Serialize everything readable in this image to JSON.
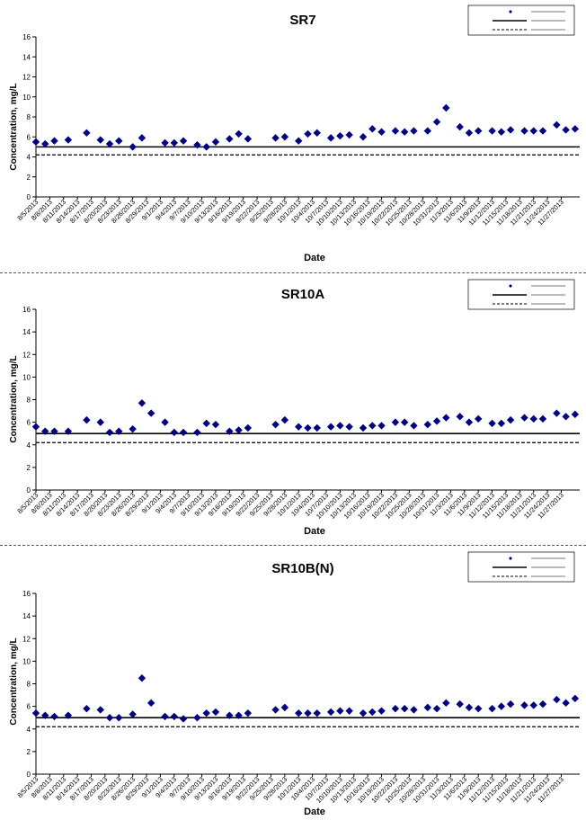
{
  "axis_dates": [
    "8/5/2013",
    "8/8/2013",
    "8/11/2013",
    "8/14/2013",
    "8/17/2013",
    "8/20/2013",
    "8/23/2013",
    "8/26/2013",
    "8/29/2013",
    "9/1/2013",
    "9/4/2013",
    "9/7/2013",
    "9/10/2013",
    "9/13/2013",
    "9/16/2013",
    "9/19/2013",
    "9/22/2013",
    "9/25/2013",
    "9/28/2013",
    "10/1/2013",
    "10/4/2013",
    "10/7/2013",
    "10/10/2013",
    "10/13/2013",
    "10/16/2013",
    "10/19/2013",
    "10/22/2013",
    "10/25/2013",
    "10/28/2013",
    "10/31/2013",
    "11/3/2013",
    "11/6/2013",
    "11/9/2013",
    "11/12/2013",
    "11/15/2013",
    "11/18/2013",
    "11/21/2013",
    "11/24/2013",
    "11/27/2013"
  ],
  "colors": {
    "marker": "#00008B",
    "line": "#000000"
  },
  "chart_data": [
    {
      "type": "scatter",
      "title": "SR7",
      "xlabel": "Date",
      "ylabel": "Concentration, mg/L",
      "ylim": [
        0,
        16
      ],
      "yticks": [
        0,
        2,
        4,
        6,
        8,
        10,
        12,
        14,
        16
      ],
      "xlim": [
        "8/5/2013",
        "11/28/2013"
      ],
      "reference_lines": [
        {
          "style": "solid",
          "y": 5.0
        },
        {
          "style": "dashed",
          "y": 4.2
        }
      ],
      "legend_placement": "top-right",
      "points": [
        [
          "8/5/2013",
          5.5
        ],
        [
          "8/7/2013",
          5.3
        ],
        [
          "8/9/2013",
          5.6
        ],
        [
          "8/12/2013",
          5.7
        ],
        [
          "8/16/2013",
          6.4
        ],
        [
          "8/19/2013",
          5.7
        ],
        [
          "8/21/2013",
          5.3
        ],
        [
          "8/23/2013",
          5.6
        ],
        [
          "8/26/2013",
          5.0
        ],
        [
          "8/28/2013",
          5.9
        ],
        [
          "9/2/2013",
          5.4
        ],
        [
          "9/4/2013",
          5.4
        ],
        [
          "9/6/2013",
          5.6
        ],
        [
          "9/9/2013",
          5.2
        ],
        [
          "9/11/2013",
          5.0
        ],
        [
          "9/13/2013",
          5.5
        ],
        [
          "9/16/2013",
          5.8
        ],
        [
          "9/18/2013",
          6.3
        ],
        [
          "9/20/2013",
          5.8
        ],
        [
          "9/26/2013",
          5.9
        ],
        [
          "9/28/2013",
          6.0
        ],
        [
          "10/1/2013",
          5.6
        ],
        [
          "10/3/2013",
          6.3
        ],
        [
          "10/5/2013",
          6.4
        ],
        [
          "10/8/2013",
          5.9
        ],
        [
          "10/10/2013",
          6.1
        ],
        [
          "10/12/2013",
          6.2
        ],
        [
          "10/15/2013",
          6.0
        ],
        [
          "10/17/2013",
          6.8
        ],
        [
          "10/19/2013",
          6.5
        ],
        [
          "10/22/2013",
          6.6
        ],
        [
          "10/24/2013",
          6.5
        ],
        [
          "10/26/2013",
          6.6
        ],
        [
          "10/29/2013",
          6.6
        ],
        [
          "10/31/2013",
          7.5
        ],
        [
          "11/2/2013",
          8.9
        ],
        [
          "11/5/2013",
          7.0
        ],
        [
          "11/7/2013",
          6.4
        ],
        [
          "11/9/2013",
          6.6
        ],
        [
          "11/12/2013",
          6.6
        ],
        [
          "11/14/2013",
          6.5
        ],
        [
          "11/16/2013",
          6.7
        ],
        [
          "11/19/2013",
          6.6
        ],
        [
          "11/21/2013",
          6.6
        ],
        [
          "11/23/2013",
          6.6
        ],
        [
          "11/26/2013",
          7.2
        ],
        [
          "11/28/2013",
          6.7
        ],
        [
          "11/30/2013",
          6.8
        ]
      ]
    },
    {
      "type": "scatter",
      "title": "SR10A",
      "xlabel": "Date",
      "ylabel": "Concentration, mg/L",
      "ylim": [
        0,
        16
      ],
      "yticks": [
        0,
        2,
        4,
        6,
        8,
        10,
        12,
        14,
        16
      ],
      "xlim": [
        "8/5/2013",
        "11/28/2013"
      ],
      "reference_lines": [
        {
          "style": "solid",
          "y": 5.0
        },
        {
          "style": "dashed",
          "y": 4.2
        }
      ],
      "legend_placement": "top-right",
      "points": [
        [
          "8/5/2013",
          5.6
        ],
        [
          "8/7/2013",
          5.2
        ],
        [
          "8/9/2013",
          5.2
        ],
        [
          "8/12/2013",
          5.2
        ],
        [
          "8/16/2013",
          6.2
        ],
        [
          "8/19/2013",
          6.0
        ],
        [
          "8/21/2013",
          5.1
        ],
        [
          "8/23/2013",
          5.2
        ],
        [
          "8/26/2013",
          5.4
        ],
        [
          "8/28/2013",
          7.7
        ],
        [
          "8/30/2013",
          6.8
        ],
        [
          "9/2/2013",
          6.0
        ],
        [
          "9/4/2013",
          5.1
        ],
        [
          "9/6/2013",
          5.1
        ],
        [
          "9/9/2013",
          5.1
        ],
        [
          "9/11/2013",
          5.9
        ],
        [
          "9/13/2013",
          5.8
        ],
        [
          "9/16/2013",
          5.2
        ],
        [
          "9/18/2013",
          5.3
        ],
        [
          "9/20/2013",
          5.5
        ],
        [
          "9/26/2013",
          5.8
        ],
        [
          "9/28/2013",
          6.2
        ],
        [
          "10/1/2013",
          5.6
        ],
        [
          "10/3/2013",
          5.5
        ],
        [
          "10/5/2013",
          5.5
        ],
        [
          "10/8/2013",
          5.6
        ],
        [
          "10/10/2013",
          5.7
        ],
        [
          "10/12/2013",
          5.6
        ],
        [
          "10/15/2013",
          5.5
        ],
        [
          "10/17/2013",
          5.7
        ],
        [
          "10/19/2013",
          5.7
        ],
        [
          "10/22/2013",
          6.0
        ],
        [
          "10/24/2013",
          6.0
        ],
        [
          "10/26/2013",
          5.7
        ],
        [
          "10/29/2013",
          5.8
        ],
        [
          "10/31/2013",
          6.1
        ],
        [
          "11/2/2013",
          6.4
        ],
        [
          "11/5/2013",
          6.5
        ],
        [
          "11/7/2013",
          6.0
        ],
        [
          "11/9/2013",
          6.3
        ],
        [
          "11/12/2013",
          5.9
        ],
        [
          "11/14/2013",
          5.9
        ],
        [
          "11/16/2013",
          6.2
        ],
        [
          "11/19/2013",
          6.4
        ],
        [
          "11/21/2013",
          6.3
        ],
        [
          "11/23/2013",
          6.3
        ],
        [
          "11/26/2013",
          6.8
        ],
        [
          "11/28/2013",
          6.5
        ],
        [
          "11/30/2013",
          6.7
        ]
      ]
    },
    {
      "type": "scatter",
      "title": "SR10B(N)",
      "xlabel": "Date",
      "ylabel": "Concentration, mg/L",
      "ylim": [
        0,
        16
      ],
      "yticks": [
        0,
        2,
        4,
        6,
        8,
        10,
        12,
        14,
        16
      ],
      "xlim": [
        "8/5/2013",
        "11/28/2013"
      ],
      "reference_lines": [
        {
          "style": "solid",
          "y": 5.0
        },
        {
          "style": "dashed",
          "y": 4.2
        }
      ],
      "legend_placement": "top-right",
      "points": [
        [
          "8/5/2013",
          5.4
        ],
        [
          "8/7/2013",
          5.2
        ],
        [
          "8/9/2013",
          5.1
        ],
        [
          "8/12/2013",
          5.2
        ],
        [
          "8/16/2013",
          5.8
        ],
        [
          "8/19/2013",
          5.7
        ],
        [
          "8/21/2013",
          5.0
        ],
        [
          "8/23/2013",
          5.0
        ],
        [
          "8/26/2013",
          5.3
        ],
        [
          "8/28/2013",
          8.5
        ],
        [
          "8/30/2013",
          6.3
        ],
        [
          "9/2/2013",
          5.1
        ],
        [
          "9/4/2013",
          5.1
        ],
        [
          "9/6/2013",
          4.9
        ],
        [
          "9/9/2013",
          5.0
        ],
        [
          "9/11/2013",
          5.4
        ],
        [
          "9/13/2013",
          5.5
        ],
        [
          "9/16/2013",
          5.2
        ],
        [
          "9/18/2013",
          5.2
        ],
        [
          "9/20/2013",
          5.4
        ],
        [
          "9/26/2013",
          5.7
        ],
        [
          "9/28/2013",
          5.9
        ],
        [
          "10/1/2013",
          5.4
        ],
        [
          "10/3/2013",
          5.4
        ],
        [
          "10/5/2013",
          5.4
        ],
        [
          "10/8/2013",
          5.5
        ],
        [
          "10/10/2013",
          5.6
        ],
        [
          "10/12/2013",
          5.6
        ],
        [
          "10/15/2013",
          5.4
        ],
        [
          "10/17/2013",
          5.5
        ],
        [
          "10/19/2013",
          5.6
        ],
        [
          "10/22/2013",
          5.8
        ],
        [
          "10/24/2013",
          5.8
        ],
        [
          "10/26/2013",
          5.7
        ],
        [
          "10/29/2013",
          5.9
        ],
        [
          "10/31/2013",
          5.8
        ],
        [
          "11/2/2013",
          6.3
        ],
        [
          "11/5/2013",
          6.2
        ],
        [
          "11/7/2013",
          5.9
        ],
        [
          "11/9/2013",
          5.8
        ],
        [
          "11/12/2013",
          5.8
        ],
        [
          "11/14/2013",
          6.0
        ],
        [
          "11/16/2013",
          6.2
        ],
        [
          "11/19/2013",
          6.1
        ],
        [
          "11/21/2013",
          6.1
        ],
        [
          "11/23/2013",
          6.2
        ],
        [
          "11/26/2013",
          6.6
        ],
        [
          "11/28/2013",
          6.3
        ],
        [
          "11/30/2013",
          6.7
        ]
      ]
    }
  ]
}
